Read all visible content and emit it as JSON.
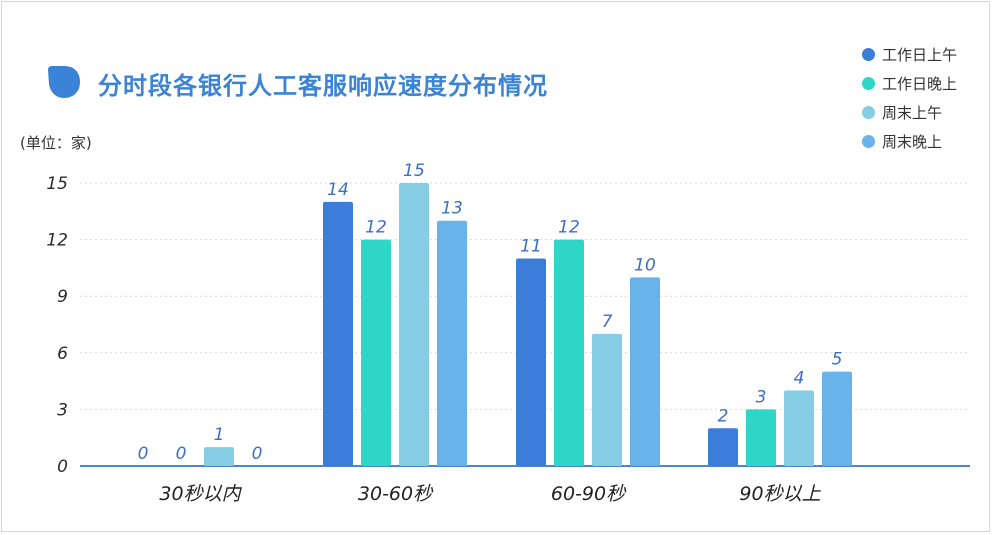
{
  "title": "分时段各银行人工客服响应速度分布情况",
  "unit_label": "(单位：家)",
  "colors": {
    "title": "#3a83d6",
    "axis": "#4a86d8",
    "grid": "#d9d9d9"
  },
  "chart_data": {
    "type": "bar",
    "title": "分时段各银行人工客服响应速度分布情况",
    "ylabel": "(单位：家)",
    "xlabel": "",
    "categories": [
      "30秒以内",
      "30-60秒",
      "60-90秒",
      "90秒以上"
    ],
    "series": [
      {
        "name": "工作日上午",
        "color": "#3b7dd8",
        "values": [
          0,
          14,
          11,
          2
        ]
      },
      {
        "name": "工作日晚上",
        "color": "#2ed6c8",
        "values": [
          0,
          12,
          12,
          3
        ]
      },
      {
        "name": "周末上午",
        "color": "#86cce4",
        "values": [
          1,
          15,
          7,
          4
        ]
      },
      {
        "name": "周末晚上",
        "color": "#68b3ea",
        "values": [
          0,
          13,
          10,
          5
        ]
      }
    ],
    "ylim": [
      0,
      15
    ],
    "yticks": [
      0,
      3,
      6,
      9,
      12,
      15
    ],
    "grid": true,
    "legend_position": "top-right"
  }
}
